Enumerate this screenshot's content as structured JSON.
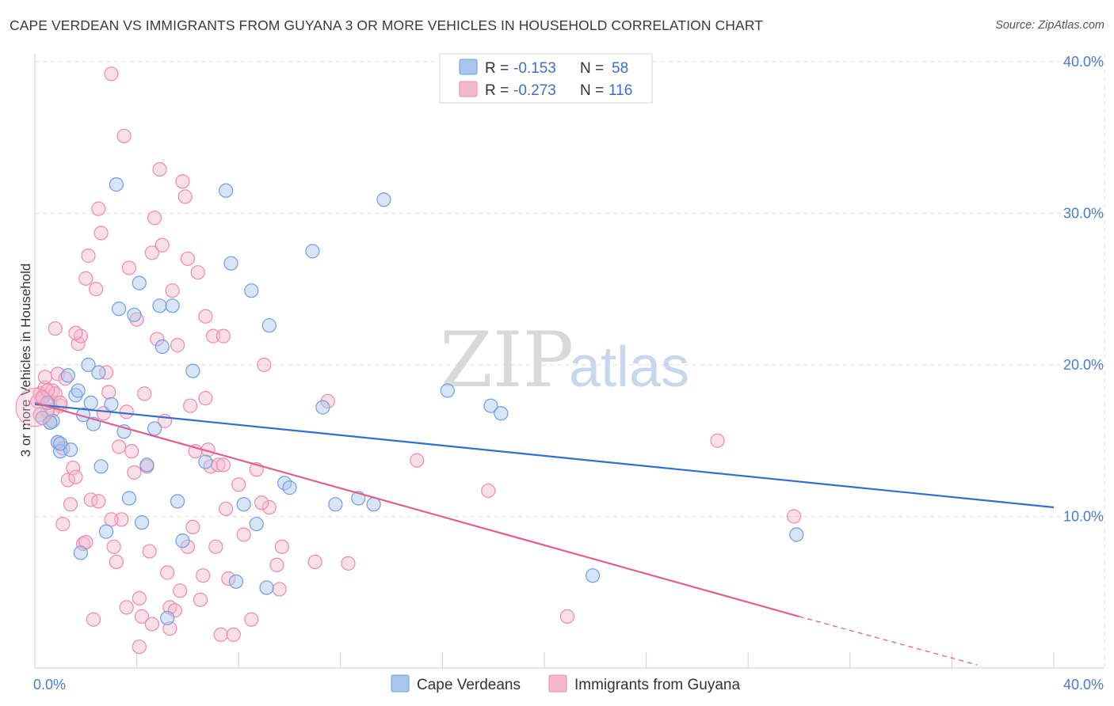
{
  "header": {
    "title": "CAPE VERDEAN VS IMMIGRANTS FROM GUYANA 3 OR MORE VEHICLES IN HOUSEHOLD CORRELATION CHART",
    "source": "Source: ZipAtlas.com"
  },
  "watermark": {
    "zip": "ZIP",
    "atlas": "atlas"
  },
  "legend": {
    "rows": [
      {
        "r_label": "R =",
        "r_value": "-0.153",
        "n_label": "N =",
        "n_value": "58",
        "color": "#a9c6ef"
      },
      {
        "r_label": "R =",
        "r_value": "-0.273",
        "n_label": "N =",
        "n_value": "116",
        "color": "#f6b8cb"
      }
    ]
  },
  "chart_data": {
    "type": "scatter",
    "ylabel": "3 or more Vehicles in Household",
    "xlim": [
      0,
      40
    ],
    "ylim": [
      0,
      40
    ],
    "x_tick_labels": [
      "0.0%",
      "40.0%"
    ],
    "y_ticks": [
      10,
      20,
      30,
      40
    ],
    "y_tick_labels": [
      "10.0%",
      "20.0%",
      "30.0%",
      "40.0%"
    ],
    "grid": true,
    "series": [
      {
        "name": "Cape Verdeans",
        "color": "#a9c6ef",
        "stroke": "#6f9de0",
        "trend": {
          "x0": 0,
          "y0": 17.4,
          "x1": 40,
          "y1": 10.6,
          "color": "#2f6fcf"
        },
        "points": [
          [
            0.3,
            16.5
          ],
          [
            0.5,
            17.5
          ],
          [
            0.7,
            16.3
          ],
          [
            0.9,
            14.9
          ],
          [
            1.0,
            14.3
          ],
          [
            1.3,
            19.3
          ],
          [
            1.4,
            14.4
          ],
          [
            1.6,
            18.0
          ],
          [
            1.7,
            18.3
          ],
          [
            1.8,
            7.6
          ],
          [
            1.9,
            16.7
          ],
          [
            2.1,
            20.0
          ],
          [
            2.2,
            17.5
          ],
          [
            2.3,
            16.1
          ],
          [
            2.5,
            19.5
          ],
          [
            2.6,
            13.3
          ],
          [
            2.8,
            9.0
          ],
          [
            3.0,
            17.4
          ],
          [
            3.2,
            31.9
          ],
          [
            3.3,
            23.7
          ],
          [
            3.5,
            15.6
          ],
          [
            3.7,
            11.2
          ],
          [
            3.9,
            23.3
          ],
          [
            4.1,
            25.4
          ],
          [
            4.2,
            9.6
          ],
          [
            4.4,
            13.4
          ],
          [
            4.7,
            15.8
          ],
          [
            4.9,
            23.9
          ],
          [
            5.0,
            21.2
          ],
          [
            5.2,
            3.3
          ],
          [
            5.4,
            23.9
          ],
          [
            5.6,
            11.0
          ],
          [
            5.8,
            8.4
          ],
          [
            6.2,
            19.6
          ],
          [
            6.7,
            13.6
          ],
          [
            7.5,
            31.5
          ],
          [
            7.7,
            26.7
          ],
          [
            7.9,
            5.7
          ],
          [
            8.2,
            10.8
          ],
          [
            8.5,
            24.9
          ],
          [
            8.7,
            9.5
          ],
          [
            9.1,
            5.3
          ],
          [
            9.2,
            22.6
          ],
          [
            9.8,
            12.2
          ],
          [
            10.0,
            11.9
          ],
          [
            10.9,
            27.5
          ],
          [
            11.3,
            17.2
          ],
          [
            11.8,
            10.8
          ],
          [
            12.7,
            11.2
          ],
          [
            13.3,
            10.8
          ],
          [
            13.7,
            30.9
          ],
          [
            16.2,
            18.3
          ],
          [
            17.9,
            17.3
          ],
          [
            18.3,
            16.8
          ],
          [
            21.9,
            6.1
          ],
          [
            29.9,
            8.8
          ],
          [
            0.6,
            16.2
          ],
          [
            1.0,
            14.8
          ]
        ]
      },
      {
        "name": "Immigrants from Guyana",
        "color": "#f6b8cb",
        "stroke": "#ec8aa9",
        "trend": {
          "x0": 0,
          "y0": 17.5,
          "x1": 30,
          "y1": 3.4,
          "x_dash_end": 37,
          "y_dash_end": 0.2,
          "color": "#e0608a"
        },
        "points": [
          [
            0.1,
            17.6
          ],
          [
            0.2,
            18.1
          ],
          [
            0.3,
            17.9
          ],
          [
            0.4,
            18.5
          ],
          [
            0.5,
            16.9
          ],
          [
            0.6,
            17.6
          ],
          [
            0.7,
            18.3
          ],
          [
            0.8,
            18.1
          ],
          [
            0.9,
            19.4
          ],
          [
            1.0,
            17.3
          ],
          [
            0.4,
            19.2
          ],
          [
            0.6,
            16.2
          ],
          [
            0.8,
            22.4
          ],
          [
            0.9,
            14.9
          ],
          [
            1.0,
            17.5
          ],
          [
            1.1,
            9.5
          ],
          [
            1.2,
            19.1
          ],
          [
            1.3,
            12.4
          ],
          [
            1.4,
            10.8
          ],
          [
            1.5,
            13.2
          ],
          [
            1.6,
            12.6
          ],
          [
            1.7,
            21.4
          ],
          [
            1.8,
            21.9
          ],
          [
            1.9,
            8.2
          ],
          [
            2.0,
            25.7
          ],
          [
            2.1,
            27.2
          ],
          [
            2.2,
            11.1
          ],
          [
            2.3,
            3.2
          ],
          [
            2.4,
            25.0
          ],
          [
            2.5,
            30.3
          ],
          [
            2.6,
            28.7
          ],
          [
            2.7,
            16.8
          ],
          [
            2.8,
            19.5
          ],
          [
            2.9,
            18.2
          ],
          [
            3.0,
            39.2
          ],
          [
            3.1,
            8.0
          ],
          [
            3.2,
            7.0
          ],
          [
            3.3,
            14.6
          ],
          [
            3.4,
            9.8
          ],
          [
            3.5,
            35.1
          ],
          [
            3.6,
            16.9
          ],
          [
            3.7,
            26.4
          ],
          [
            3.8,
            14.3
          ],
          [
            3.9,
            12.9
          ],
          [
            4.0,
            23.0
          ],
          [
            4.1,
            1.4
          ],
          [
            4.2,
            3.4
          ],
          [
            4.3,
            18.1
          ],
          [
            4.4,
            13.3
          ],
          [
            4.5,
            7.7
          ],
          [
            4.6,
            27.4
          ],
          [
            4.7,
            29.7
          ],
          [
            4.8,
            21.7
          ],
          [
            4.9,
            32.9
          ],
          [
            5.0,
            27.9
          ],
          [
            5.1,
            16.3
          ],
          [
            5.2,
            6.3
          ],
          [
            5.3,
            4.0
          ],
          [
            5.4,
            24.9
          ],
          [
            5.5,
            3.8
          ],
          [
            5.6,
            21.3
          ],
          [
            5.7,
            5.1
          ],
          [
            5.8,
            32.1
          ],
          [
            5.9,
            31.1
          ],
          [
            6.0,
            27.0
          ],
          [
            6.1,
            17.3
          ],
          [
            6.2,
            9.3
          ],
          [
            6.3,
            14.3
          ],
          [
            6.4,
            26.1
          ],
          [
            6.5,
            4.5
          ],
          [
            6.6,
            6.1
          ],
          [
            6.7,
            17.8
          ],
          [
            6.8,
            14.4
          ],
          [
            6.9,
            13.3
          ],
          [
            7.0,
            21.9
          ],
          [
            7.1,
            8.0
          ],
          [
            7.2,
            13.4
          ],
          [
            7.3,
            2.2
          ],
          [
            7.4,
            13.4
          ],
          [
            7.5,
            10.5
          ],
          [
            7.6,
            5.9
          ],
          [
            8.0,
            12.1
          ],
          [
            8.2,
            8.8
          ],
          [
            8.5,
            3.2
          ],
          [
            8.7,
            13.1
          ],
          [
            9.0,
            20.0
          ],
          [
            9.2,
            10.6
          ],
          [
            9.5,
            6.8
          ],
          [
            9.7,
            8.0
          ],
          [
            11.0,
            7.0
          ],
          [
            11.5,
            17.6
          ],
          [
            12.3,
            6.9
          ],
          [
            15.0,
            13.7
          ],
          [
            17.8,
            11.7
          ],
          [
            20.9,
            3.4
          ],
          [
            26.8,
            15.0
          ],
          [
            29.8,
            10.0
          ],
          [
            0.2,
            16.7
          ],
          [
            0.3,
            17.8
          ],
          [
            0.5,
            18.3
          ],
          [
            0.7,
            17.0
          ],
          [
            1.1,
            14.5
          ],
          [
            1.6,
            22.1
          ],
          [
            2.5,
            11.0
          ],
          [
            3.0,
            9.8
          ],
          [
            3.6,
            4.0
          ],
          [
            4.1,
            4.6
          ],
          [
            4.6,
            2.9
          ],
          [
            5.3,
            2.6
          ],
          [
            6.0,
            8.0
          ],
          [
            6.7,
            23.2
          ],
          [
            7.4,
            21.9
          ],
          [
            7.8,
            2.2
          ],
          [
            8.9,
            10.9
          ],
          [
            9.6,
            5.2
          ],
          [
            2.0,
            8.3
          ]
        ]
      }
    ]
  },
  "bottom_legend": {
    "items": [
      {
        "label": "Cape Verdeans",
        "color": "#a9c6ef"
      },
      {
        "label": "Immigrants from Guyana",
        "color": "#f6b8cb"
      }
    ]
  }
}
